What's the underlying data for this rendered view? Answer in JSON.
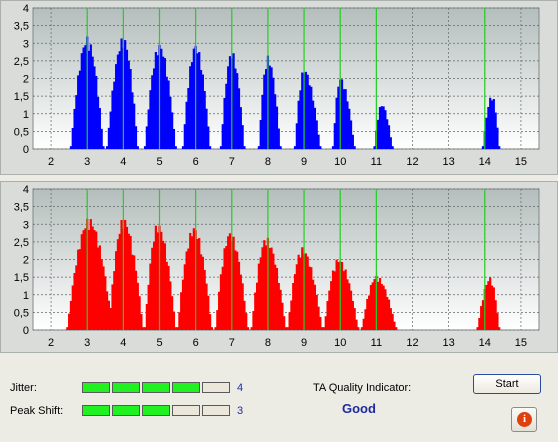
{
  "chart_data": [
    {
      "type": "bar",
      "title": "",
      "xlabel": "",
      "ylabel": "",
      "xlim": [
        1.5,
        15.5
      ],
      "ylim": [
        0,
        4
      ],
      "x_ticks": [
        "2",
        "3",
        "4",
        "5",
        "6",
        "7",
        "8",
        "9",
        "10",
        "11",
        "12",
        "13",
        "14",
        "15"
      ],
      "y_ticks": [
        "0",
        "0,5",
        "1",
        "1,5",
        "2",
        "2,5",
        "3",
        "3,5",
        "4"
      ],
      "grid": true,
      "bar_color": "#0000ff",
      "marker_lines_x": [
        3,
        4,
        5,
        6,
        7,
        8,
        9,
        10,
        11,
        14
      ],
      "marker_line_color": "#22d022",
      "peaks": [
        {
          "center": 3.0,
          "height": 3.2,
          "min": 2.55,
          "max": 3.45
        },
        {
          "center": 4.0,
          "height": 3.2,
          "min": 3.55,
          "max": 4.4
        },
        {
          "center": 5.0,
          "height": 3.0,
          "min": 4.6,
          "max": 5.45
        },
        {
          "center": 6.0,
          "height": 3.0,
          "min": 5.65,
          "max": 6.4
        },
        {
          "center": 7.0,
          "height": 2.8,
          "min": 6.7,
          "max": 7.35
        },
        {
          "center": 8.0,
          "height": 2.65,
          "min": 7.75,
          "max": 8.35
        },
        {
          "center": 9.0,
          "height": 2.3,
          "min": 8.75,
          "max": 9.45
        },
        {
          "center": 10.0,
          "height": 2.05,
          "min": 9.8,
          "max": 10.4
        },
        {
          "center": 11.15,
          "height": 1.3,
          "min": 10.95,
          "max": 11.45
        },
        {
          "center": 14.2,
          "height": 1.55,
          "min": 13.95,
          "max": 14.4
        }
      ]
    },
    {
      "type": "bar",
      "title": "",
      "xlabel": "",
      "ylabel": "",
      "xlim": [
        1.5,
        15.5
      ],
      "ylim": [
        0,
        4
      ],
      "x_ticks": [
        "2",
        "3",
        "4",
        "5",
        "6",
        "7",
        "8",
        "9",
        "10",
        "11",
        "12",
        "13",
        "14",
        "15"
      ],
      "y_ticks": [
        "0",
        "0,5",
        "1",
        "1,5",
        "2",
        "2,5",
        "3",
        "3,5",
        "4"
      ],
      "grid": true,
      "bar_color": "#ff0000",
      "marker_lines_x": [
        3,
        4,
        5,
        6,
        7,
        8,
        9,
        10,
        11,
        14
      ],
      "marker_line_color": "#22d022",
      "peaks": [
        {
          "center": 3.05,
          "height": 3.2,
          "min": 2.45,
          "max": 3.7
        },
        {
          "center": 4.0,
          "height": 3.2,
          "min": 3.6,
          "max": 4.55
        },
        {
          "center": 4.95,
          "height": 3.05,
          "min": 4.6,
          "max": 5.45
        },
        {
          "center": 5.95,
          "height": 2.95,
          "min": 5.5,
          "max": 6.45
        },
        {
          "center": 6.95,
          "height": 2.8,
          "min": 6.55,
          "max": 7.45
        },
        {
          "center": 7.95,
          "height": 2.65,
          "min": 7.55,
          "max": 8.5
        },
        {
          "center": 8.95,
          "height": 2.35,
          "min": 8.55,
          "max": 9.5
        },
        {
          "center": 9.95,
          "height": 2.05,
          "min": 9.55,
          "max": 10.5
        },
        {
          "center": 11.0,
          "height": 1.55,
          "min": 10.6,
          "max": 11.55
        },
        {
          "center": 14.15,
          "height": 1.5,
          "min": 13.8,
          "max": 14.4
        }
      ]
    }
  ],
  "jitter": {
    "label": "Jitter:",
    "level": 4,
    "max": 5,
    "value": "4"
  },
  "peak_shift": {
    "label": "Peak Shift:",
    "level": 3,
    "max": 5,
    "value": "3"
  },
  "ta_quality": {
    "label": "TA Quality Indicator:",
    "value": "Good"
  },
  "start_button": {
    "label": "Start"
  },
  "info_button": {
    "icon": "info-icon",
    "glyph": "i"
  }
}
